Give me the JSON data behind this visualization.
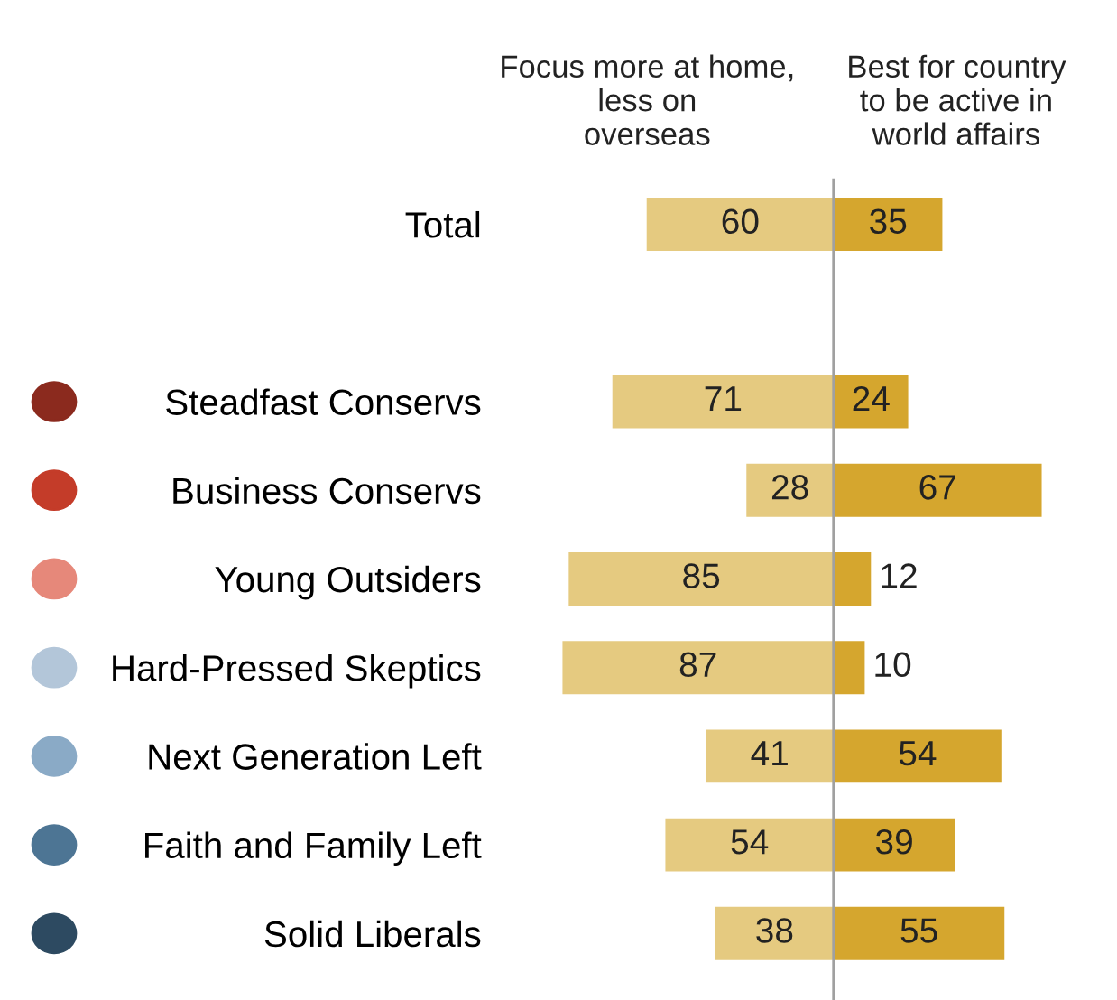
{
  "chart_data": [
    {
      "type": "bar",
      "orientation": "horizontal",
      "title": "Focus more at home,\nless on\noverseas",
      "categories": [
        "Total",
        null,
        "Steadfast Conservs",
        "Business Conservs",
        "Young Outsiders",
        "Hard-Pressed Skeptics",
        "Next Generation Left",
        "Faith and Family Left",
        "Solid Liberals"
      ],
      "values": [
        60,
        null,
        71,
        28,
        85,
        87,
        41,
        54,
        38
      ],
      "color": "#e5ca80",
      "data_labels": true,
      "tick_labels": "y"
    },
    {
      "type": "bar",
      "orientation": "horizontal",
      "title": "Best for country\nto be active in\nworld affairs",
      "categories": [
        null,
        null,
        null,
        null,
        null,
        null,
        null,
        null,
        null
      ],
      "values": [
        35,
        null,
        24,
        67,
        12,
        10,
        54,
        39,
        55
      ],
      "color": "#d5a62e",
      "data_labels": true,
      "tick_labels": false
    }
  ]
}
